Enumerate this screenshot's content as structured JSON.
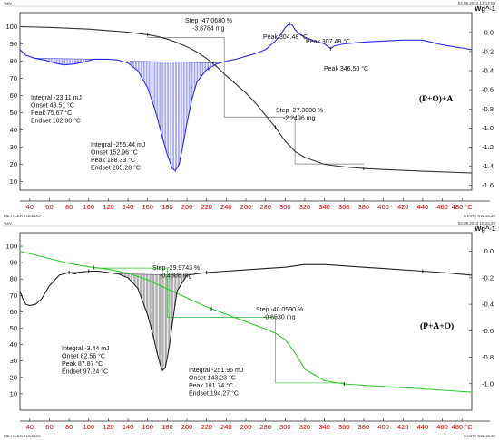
{
  "colors": {
    "tg_curve": "#333333",
    "top_dsc_curve": "#2a2af0",
    "bottom_tg_curve": "#2ecc2e",
    "bottom_dsc_curve": "#222222",
    "top_fill": "#4b4be6",
    "bottom_fill": "#555555",
    "x_tick_color": "#d40000",
    "top_step_line": "#777777",
    "bottom_step_line": "#33bb33"
  },
  "chart_data": [
    {
      "type": "line",
      "panel": "top",
      "label": "(P+O)+A",
      "header_left": "%ev",
      "header_right": "04.08.2022 12:14:08",
      "footer_left": "METTLER TOLEDO",
      "footer_right": "STARe SW 16.30",
      "xlabel": "°C",
      "xlim": [
        30,
        490
      ],
      "x_ticks": [
        40,
        60,
        80,
        100,
        120,
        140,
        160,
        180,
        200,
        220,
        240,
        260,
        280,
        300,
        320,
        340,
        360,
        380,
        400,
        420,
        440,
        460,
        480
      ],
      "x_tick_labels": [
        "40",
        "60",
        "80",
        "100",
        "120",
        "140",
        "160",
        "180",
        "200",
        "220",
        "240",
        "260",
        "280",
        "300",
        "320",
        "340",
        "360",
        "380",
        "400",
        "420",
        "440",
        "460",
        "480 °C"
      ],
      "ylim_left": [
        5,
        105
      ],
      "y_ticks_left": [
        10,
        20,
        30,
        40,
        50,
        60,
        70,
        80,
        90,
        100
      ],
      "y_ticks_left_labels": [
        "10",
        "20",
        "30",
        "40",
        "50",
        "60",
        "70",
        "80",
        "90",
        "100"
      ],
      "right_axis_unit": "Wg^-1",
      "ylim_right": [
        -1.65,
        0.15
      ],
      "y_ticks_right": [
        0.0,
        -0.2,
        -0.4,
        -0.6,
        -0.8,
        -1.0,
        -1.2,
        -1.4,
        -1.6
      ],
      "y_ticks_right_labels": [
        "0.0",
        "-0.2",
        "-0.4",
        "-0.6",
        "-0.8",
        "-1.0",
        "-1.2",
        "-1.4",
        "-1.6"
      ],
      "series": [
        {
          "role": "TG",
          "axis": "left",
          "x": [
            30,
            60,
            100,
            140,
            160,
            170,
            180,
            190,
            200,
            210,
            220,
            230,
            240,
            250,
            260,
            270,
            280,
            290,
            300,
            310,
            320,
            340,
            360,
            380,
            400,
            440,
            490
          ],
          "y": [
            100,
            99.6,
            98.6,
            96.8,
            95.3,
            94.3,
            92.8,
            90.8,
            88.3,
            85.3,
            81.5,
            77,
            71.5,
            66.5,
            61.5,
            55.5,
            48.5,
            41.5,
            33.5,
            27.5,
            24,
            20,
            18.5,
            17.6,
            17,
            16,
            15
          ]
        },
        {
          "role": "DSC",
          "axis": "right",
          "x": [
            30,
            36,
            45,
            55,
            65,
            75,
            85,
            95,
            105,
            112,
            120,
            130,
            140,
            150,
            160,
            165,
            170,
            175,
            180,
            185,
            188,
            192,
            196,
            200,
            205,
            210,
            220,
            230,
            240,
            250,
            260,
            270,
            280,
            290,
            295,
            300,
            304,
            307,
            310,
            315,
            320,
            330,
            340,
            346.5,
            350,
            360,
            380,
            400,
            420,
            440,
            460,
            490
          ],
          "y": [
            -0.18,
            -0.24,
            -0.27,
            -0.29,
            -0.32,
            -0.34,
            -0.33,
            -0.31,
            -0.28,
            -0.28,
            -0.28,
            -0.29,
            -0.32,
            -0.4,
            -0.58,
            -0.73,
            -0.9,
            -1.1,
            -1.28,
            -1.42,
            -1.45,
            -1.38,
            -1.18,
            -0.95,
            -0.7,
            -0.52,
            -0.39,
            -0.33,
            -0.3,
            -0.28,
            -0.25,
            -0.22,
            -0.18,
            -0.09,
            -0.03,
            0.05,
            0.09,
            0.08,
            0.03,
            -0.02,
            -0.05,
            -0.09,
            -0.12,
            -0.17,
            -0.14,
            -0.12,
            -0.1,
            -0.09,
            -0.08,
            -0.08,
            -0.13,
            -0.18
          ]
        }
      ],
      "annotations": [
        {
          "text": [
            "Step   -47.0680 %",
            "-3.8784 mg"
          ],
          "kind": "step"
        },
        {
          "text": [
            "Step   -27.3008 %",
            "-2.2496 mg"
          ],
          "kind": "step"
        },
        {
          "text": [
            "Peak   304.48 °C"
          ],
          "kind": "peak"
        },
        {
          "text": [
            "Peak   307.48 °C"
          ],
          "kind": "peak"
        },
        {
          "text": [
            "Peak   346.50 °C"
          ],
          "kind": "peak"
        },
        {
          "text": [
            "Integral  -23.11 mJ",
            "Onset     48.51 °C",
            "Peak      75.67 °C",
            "Endset   102.90 °C"
          ],
          "kind": "integral"
        },
        {
          "text": [
            "Integral  -255.44 mJ",
            "Onset     152.96 °C",
            "Peak      188.33 °C",
            "Endset   205.28 °C"
          ],
          "kind": "integral"
        }
      ]
    },
    {
      "type": "line",
      "panel": "bottom",
      "label": "(P+A+O)",
      "header_left": "%ev",
      "header_right": "04.08.2022 10:24:29",
      "footer_left": "METTLER TOLEDO",
      "footer_right": "STARe SW 16.30",
      "xlabel": "°C",
      "xlim": [
        30,
        490
      ],
      "x_ticks": [
        40,
        60,
        80,
        100,
        120,
        140,
        160,
        180,
        200,
        220,
        240,
        260,
        280,
        300,
        320,
        340,
        360,
        380,
        400,
        420,
        440,
        460,
        480
      ],
      "x_tick_labels": [
        "40",
        "60",
        "80",
        "100",
        "120",
        "140",
        "160",
        "180",
        "200",
        "220",
        "240",
        "260",
        "280",
        "300",
        "320",
        "340",
        "360",
        "380",
        "400",
        "420",
        "440",
        "460",
        "480 °C"
      ],
      "ylim_left": [
        0,
        105
      ],
      "y_ticks_left": [
        10,
        20,
        30,
        40,
        50,
        60,
        70,
        80,
        90,
        100
      ],
      "y_ticks_left_labels": [
        "10",
        "20",
        "30",
        "40",
        "50",
        "60",
        "70",
        "80",
        "90",
        "100"
      ],
      "right_axis_unit": "Wg^-1",
      "ylim_right": [
        -1.2,
        0.1
      ],
      "y_ticks_right": [
        0.0,
        -0.2,
        -0.4,
        -0.6,
        -0.8,
        -1.0
      ],
      "y_ticks_right_labels": [
        "0.0",
        "-0.2",
        "-0.4",
        "-0.6",
        "-0.8",
        "-1.0"
      ],
      "series": [
        {
          "role": "TG",
          "axis": "left",
          "x": [
            30,
            60,
            80,
            100,
            120,
            140,
            160,
            180,
            200,
            220,
            240,
            260,
            280,
            290,
            300,
            310,
            320,
            340,
            360,
            380,
            400,
            440,
            490
          ],
          "y": [
            97,
            92.5,
            89.5,
            87.5,
            86,
            83.5,
            79.5,
            74,
            68.5,
            63,
            58.5,
            54,
            49.5,
            47,
            43,
            35,
            25,
            18,
            16,
            15.2,
            14.5,
            13,
            11
          ]
        },
        {
          "role": "DSC",
          "axis": "right",
          "x": [
            30,
            33,
            36,
            40,
            46,
            52,
            60,
            70,
            80,
            86,
            90,
            100,
            110,
            120,
            130,
            140,
            150,
            160,
            165,
            170,
            173,
            175,
            178,
            182,
            186,
            190,
            200,
            220,
            240,
            260,
            280,
            300,
            320,
            340,
            360,
            380,
            400,
            420,
            440,
            460,
            490
          ],
          "y": [
            -0.3,
            -0.36,
            -0.4,
            -0.41,
            -0.4,
            -0.36,
            -0.26,
            -0.18,
            -0.16,
            -0.17,
            -0.16,
            -0.15,
            -0.15,
            -0.16,
            -0.17,
            -0.2,
            -0.28,
            -0.48,
            -0.62,
            -0.78,
            -0.86,
            -0.9,
            -0.88,
            -0.72,
            -0.5,
            -0.3,
            -0.18,
            -0.16,
            -0.15,
            -0.14,
            -0.13,
            -0.12,
            -0.1,
            -0.1,
            -0.11,
            -0.12,
            -0.13,
            -0.14,
            -0.15,
            -0.16,
            -0.18
          ]
        }
      ],
      "annotations": [
        {
          "text": [
            "Step   -29.9743 %",
            "-0.4886 mg"
          ],
          "kind": "step"
        },
        {
          "text": [
            "Step   -40.0590 %",
            "-0.6530 mg"
          ],
          "kind": "step"
        },
        {
          "text": [
            "Integral  -3.44 mJ",
            "Onset     82.56 °C",
            "Peak      87.87 °C",
            "Endset   97.24 °C"
          ],
          "kind": "integral"
        },
        {
          "text": [
            "Integral  -251.96 mJ",
            "Onset     143.23 °C",
            "Peak      181.74 °C",
            "Endset   194.27 °C"
          ],
          "kind": "integral"
        }
      ]
    }
  ]
}
